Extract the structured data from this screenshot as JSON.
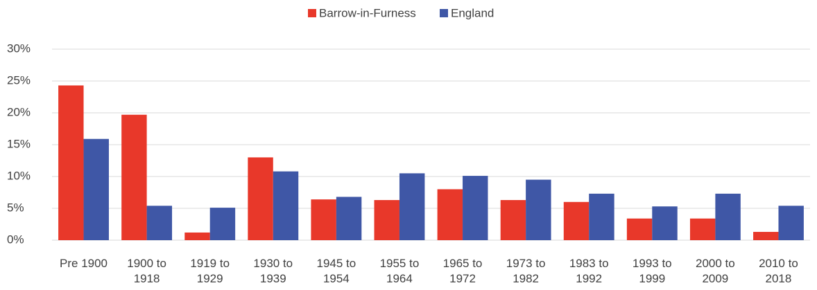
{
  "chart_data": {
    "type": "bar",
    "categories": [
      "Pre 1900",
      "1900 to 1918",
      "1919 to 1929",
      "1930 to 1939",
      "1945 to 1954",
      "1955 to 1964",
      "1965 to 1972",
      "1973 to 1982",
      "1983 to 1992",
      "1993 to 1999",
      "2000 to 2009",
      "2010 to 2018"
    ],
    "series": [
      {
        "name": "Barrow-in-Furness",
        "color": "#e8382a",
        "values": [
          24.3,
          19.7,
          1.2,
          13.0,
          6.4,
          6.3,
          8.0,
          6.3,
          6.0,
          3.4,
          3.4,
          1.3
        ]
      },
      {
        "name": "England",
        "color": "#3f57a6",
        "values": [
          15.9,
          5.4,
          5.1,
          10.8,
          6.8,
          10.5,
          10.1,
          9.5,
          7.3,
          5.3,
          7.3,
          5.4
        ]
      }
    ],
    "ylim": [
      0,
      30
    ],
    "yticks": [
      {
        "value": 0,
        "label": "0%"
      },
      {
        "value": 5,
        "label": "5%"
      },
      {
        "value": 10,
        "label": "10%"
      },
      {
        "value": 15,
        "label": "15%"
      },
      {
        "value": 20,
        "label": "20%"
      },
      {
        "value": 25,
        "label": "25%"
      },
      {
        "value": 30,
        "label": "30%"
      }
    ],
    "grid": true,
    "legend": "top"
  }
}
